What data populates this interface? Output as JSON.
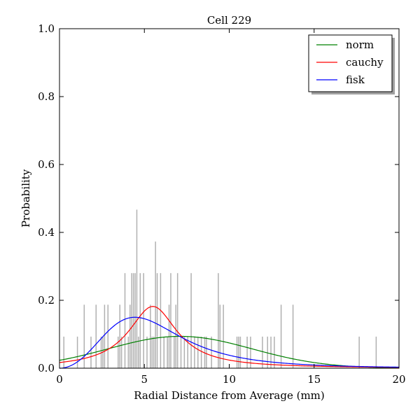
{
  "chart_data": {
    "type": "line",
    "title": "Cell 229",
    "xlabel": "Radial Distance from Average (mm)",
    "ylabel": "Probability",
    "xlim": [
      0,
      20
    ],
    "ylim": [
      0,
      1.0
    ],
    "xticks": [
      0,
      5,
      10,
      15,
      20
    ],
    "xtick_labels": [
      "0",
      "5",
      "10",
      "15",
      "20"
    ],
    "yticks": [
      0,
      0.2,
      0.4,
      0.6,
      0.8,
      1.0
    ],
    "ytick_labels": [
      "0.0",
      "0.2",
      "0.4",
      "0.6",
      "0.8",
      "1.0"
    ],
    "grid": false,
    "legend_position": "top-right",
    "histogram": {
      "color": "#b0b0b0",
      "bin_width": 0.1,
      "bars": [
        [
          0.25,
          0.093
        ],
        [
          1.05,
          0.093
        ],
        [
          1.45,
          0.187
        ],
        [
          1.85,
          0.093
        ],
        [
          2.15,
          0.187
        ],
        [
          2.45,
          0.093
        ],
        [
          2.55,
          0.093
        ],
        [
          2.65,
          0.187
        ],
        [
          2.85,
          0.187
        ],
        [
          3.45,
          0.093
        ],
        [
          3.55,
          0.187
        ],
        [
          3.65,
          0.093
        ],
        [
          3.85,
          0.28
        ],
        [
          4.05,
          0.093
        ],
        [
          4.15,
          0.187
        ],
        [
          4.25,
          0.28
        ],
        [
          4.35,
          0.28
        ],
        [
          4.45,
          0.28
        ],
        [
          4.55,
          0.467
        ],
        [
          4.65,
          0.093
        ],
        [
          4.75,
          0.28
        ],
        [
          4.95,
          0.28
        ],
        [
          5.15,
          0.093
        ],
        [
          5.35,
          0.187
        ],
        [
          5.45,
          0.093
        ],
        [
          5.55,
          0.093
        ],
        [
          5.65,
          0.373
        ],
        [
          5.75,
          0.28
        ],
        [
          5.95,
          0.28
        ],
        [
          6.15,
          0.093
        ],
        [
          6.35,
          0.093
        ],
        [
          6.45,
          0.187
        ],
        [
          6.55,
          0.28
        ],
        [
          6.75,
          0.093
        ],
        [
          6.85,
          0.187
        ],
        [
          6.95,
          0.28
        ],
        [
          7.15,
          0.093
        ],
        [
          7.35,
          0.093
        ],
        [
          7.55,
          0.093
        ],
        [
          7.75,
          0.28
        ],
        [
          7.95,
          0.093
        ],
        [
          8.15,
          0.093
        ],
        [
          8.35,
          0.093
        ],
        [
          8.55,
          0.093
        ],
        [
          8.65,
          0.093
        ],
        [
          8.95,
          0.093
        ],
        [
          9.35,
          0.28
        ],
        [
          9.45,
          0.187
        ],
        [
          9.65,
          0.187
        ],
        [
          10.45,
          0.093
        ],
        [
          10.55,
          0.093
        ],
        [
          10.65,
          0.093
        ],
        [
          11.05,
          0.093
        ],
        [
          11.25,
          0.093
        ],
        [
          11.95,
          0.093
        ],
        [
          12.25,
          0.093
        ],
        [
          12.45,
          0.093
        ],
        [
          12.65,
          0.093
        ],
        [
          13.05,
          0.187
        ],
        [
          13.75,
          0.187
        ],
        [
          17.65,
          0.093
        ],
        [
          18.65,
          0.093
        ]
      ]
    },
    "series": [
      {
        "name": "norm",
        "color": "#008000",
        "dist": "norm",
        "params": {
          "mu": 7.1,
          "sigma": 4.25
        }
      },
      {
        "name": "cauchy",
        "color": "#ff0000",
        "dist": "cauchy",
        "params": {
          "x0": 5.5,
          "gamma": 1.75
        }
      },
      {
        "name": "fisk",
        "color": "#0000ff",
        "dist": "fisk",
        "params": {
          "c": 3.0,
          "scale": 5.6
        }
      }
    ],
    "legend": [
      "norm",
      "cauchy",
      "fisk"
    ]
  }
}
